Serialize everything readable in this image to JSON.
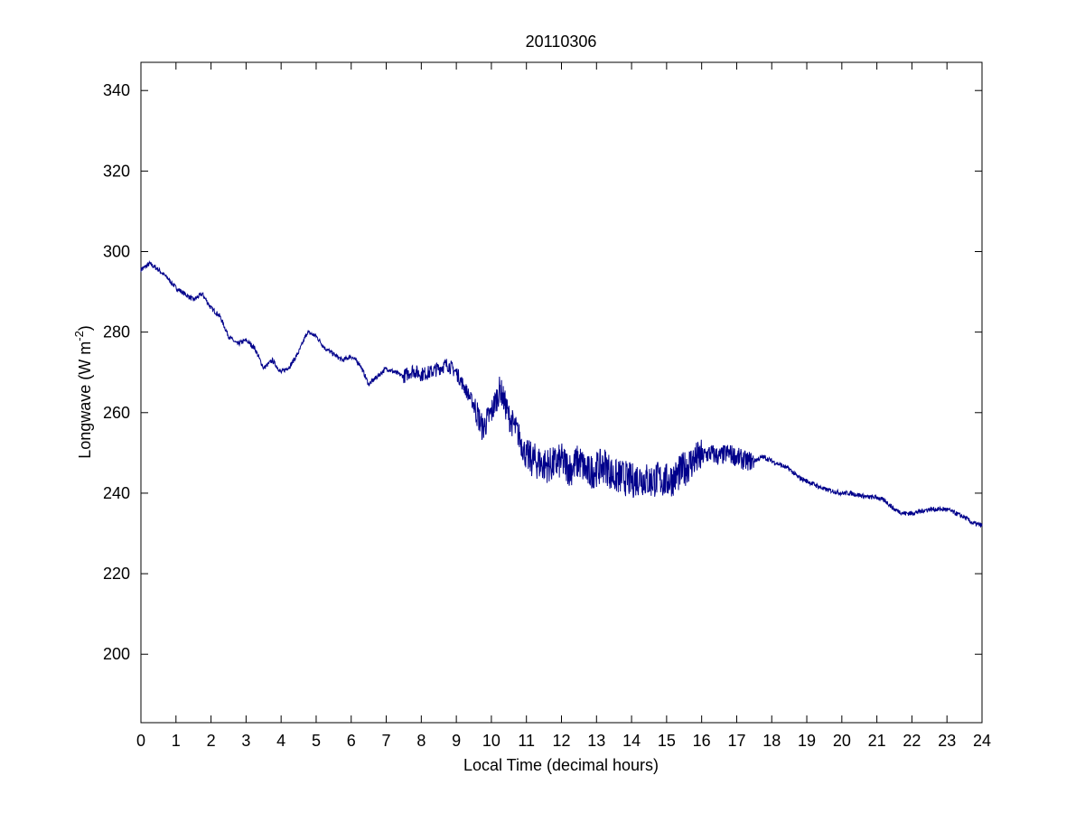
{
  "chart_data": {
    "type": "line",
    "title": "20110306",
    "xlabel": "Local Time (decimal hours)",
    "ylabel": "Longwave (W m",
    "ylabel_superscript": "-2",
    "ylabel_suffix": ")",
    "xlim": [
      0,
      24
    ],
    "ylim": [
      183,
      347
    ],
    "xticks": [
      0,
      1,
      2,
      3,
      4,
      5,
      6,
      7,
      8,
      9,
      10,
      11,
      12,
      13,
      14,
      15,
      16,
      17,
      18,
      19,
      20,
      21,
      22,
      23,
      24
    ],
    "yticks": [
      200,
      220,
      240,
      260,
      280,
      300,
      320,
      340
    ],
    "grid": false,
    "line_color": "#00008b",
    "series": [
      {
        "x": [
          0,
          0.25,
          0.5,
          0.75,
          1.0,
          1.25,
          1.5,
          1.75,
          2.0,
          2.25,
          2.5,
          2.75,
          3.0,
          3.25,
          3.5,
          3.75,
          4.0,
          4.25,
          4.5,
          4.75,
          5.0,
          5.25,
          5.5,
          5.75,
          6.0,
          6.25,
          6.5,
          6.75,
          7.0,
          7.25,
          7.5,
          7.75,
          8.0,
          8.25,
          8.5,
          8.75,
          9.0,
          9.25,
          9.5,
          9.75,
          10.0,
          10.25,
          10.5,
          10.75,
          11.0,
          11.25,
          11.5,
          11.75,
          12.0,
          12.25,
          12.5,
          12.75,
          13.0,
          13.25,
          13.5,
          13.75,
          14.0,
          14.25,
          14.5,
          14.75,
          15.0,
          15.25,
          15.5,
          15.75,
          16.0,
          16.25,
          16.5,
          16.75,
          17.0,
          17.25,
          17.5,
          17.75,
          18.0,
          18.25,
          18.5,
          18.75,
          19.0,
          19.25,
          19.5,
          19.75,
          20.0,
          20.25,
          20.5,
          20.75,
          21.0,
          21.25,
          21.5,
          21.75,
          22.0,
          22.25,
          22.5,
          22.75,
          23.0,
          23.25,
          23.5,
          23.75,
          24.0
        ],
        "values": [
          295.5,
          297,
          295.5,
          293.5,
          291,
          289.5,
          288,
          289.5,
          286,
          284,
          279,
          277,
          278,
          276,
          271,
          273,
          270,
          271.5,
          275,
          280,
          279,
          276,
          274.5,
          273,
          274,
          272,
          267,
          269,
          271,
          270,
          269,
          270.5,
          269.5,
          270,
          271,
          272,
          270,
          266,
          262,
          256,
          260,
          266,
          259,
          255,
          249,
          248,
          247,
          247,
          248,
          246,
          248,
          245,
          246,
          247,
          244,
          244,
          243,
          244,
          243,
          243.5,
          243,
          244,
          246,
          248,
          249,
          250,
          249,
          250,
          249,
          248,
          248,
          249,
          248,
          247,
          246,
          244,
          243,
          242,
          241,
          240.5,
          240,
          240,
          239.5,
          239,
          239,
          238,
          236,
          235,
          235,
          235.5,
          236,
          236,
          236,
          235,
          234,
          232.5,
          232
        ]
      }
    ]
  }
}
